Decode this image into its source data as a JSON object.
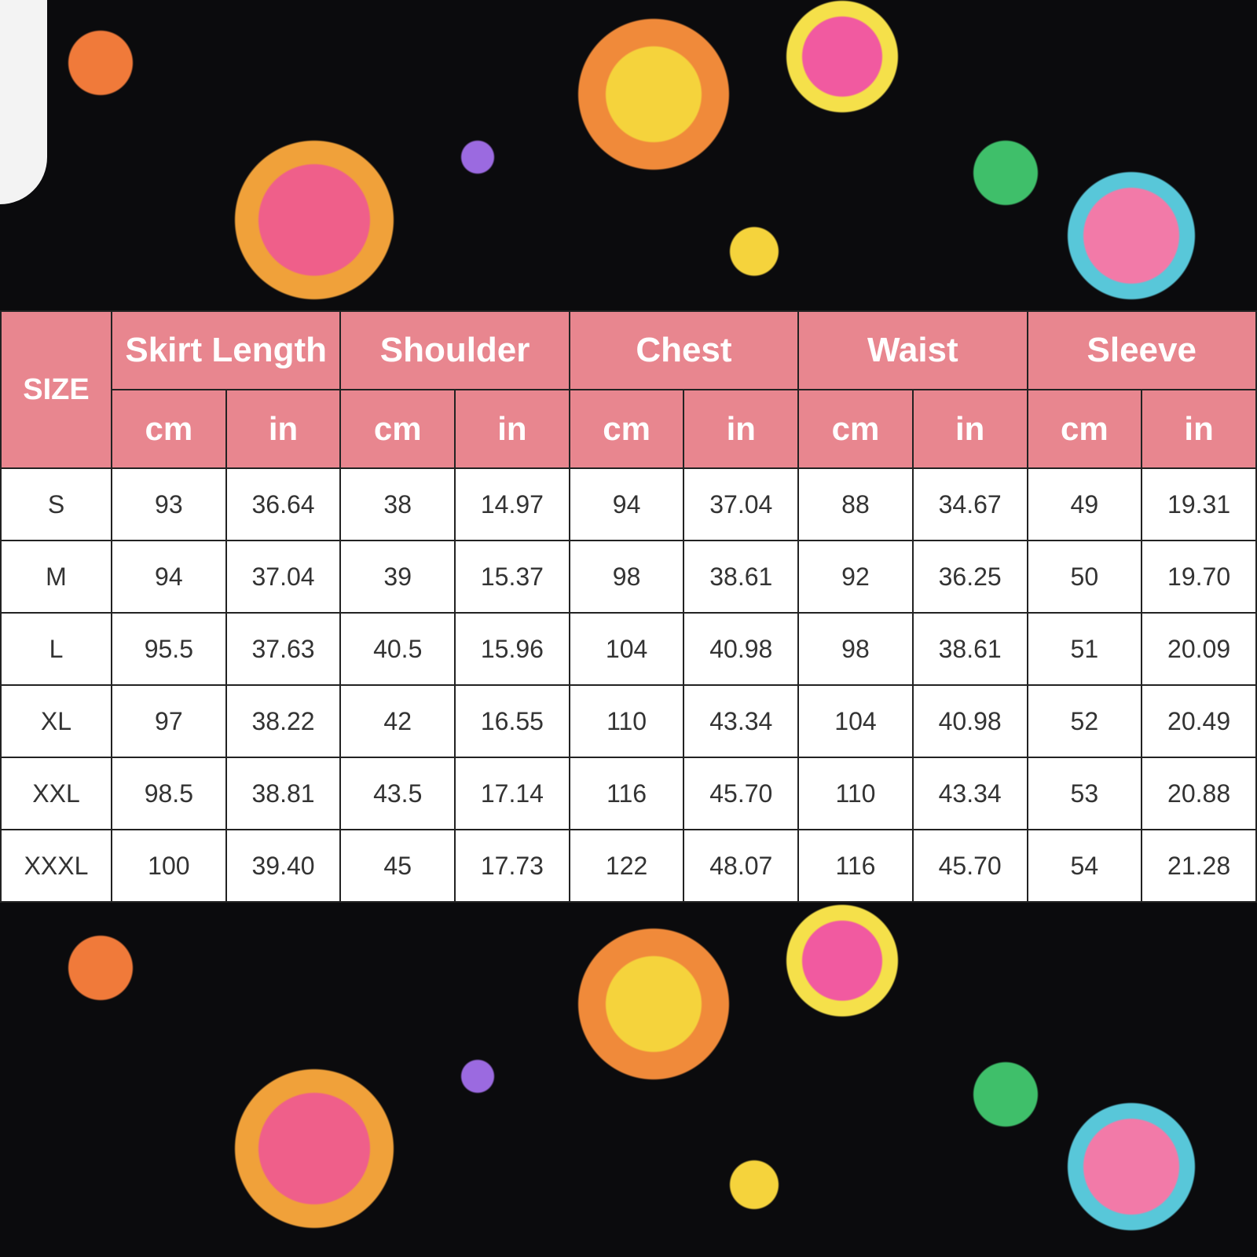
{
  "size_chart": {
    "size_header": "SIZE",
    "groups": [
      "Skirt Length",
      "Shoulder",
      "Chest",
      "Waist",
      "Sleeve"
    ],
    "units": [
      "cm",
      "in"
    ],
    "rows": [
      {
        "size": "S",
        "values": [
          "93",
          "36.64",
          "38",
          "14.97",
          "94",
          "37.04",
          "88",
          "34.67",
          "49",
          "19.31"
        ]
      },
      {
        "size": "M",
        "values": [
          "94",
          "37.04",
          "39",
          "15.37",
          "98",
          "38.61",
          "92",
          "36.25",
          "50",
          "19.70"
        ]
      },
      {
        "size": "L",
        "values": [
          "95.5",
          "37.63",
          "40.5",
          "15.96",
          "104",
          "40.98",
          "98",
          "38.61",
          "51",
          "20.09"
        ]
      },
      {
        "size": "XL",
        "values": [
          "97",
          "38.22",
          "42",
          "16.55",
          "110",
          "43.34",
          "104",
          "40.98",
          "52",
          "20.49"
        ]
      },
      {
        "size": "XXL",
        "values": [
          "98.5",
          "38.81",
          "43.5",
          "17.14",
          "116",
          "45.70",
          "110",
          "43.34",
          "53",
          "20.88"
        ]
      },
      {
        "size": "XXXL",
        "values": [
          "100",
          "39.40",
          "45",
          "17.73",
          "122",
          "48.07",
          "116",
          "45.70",
          "54",
          "21.28"
        ]
      }
    ]
  },
  "colors": {
    "header_pink": "#e8868f",
    "fabric_background": "#0b0b0d"
  }
}
